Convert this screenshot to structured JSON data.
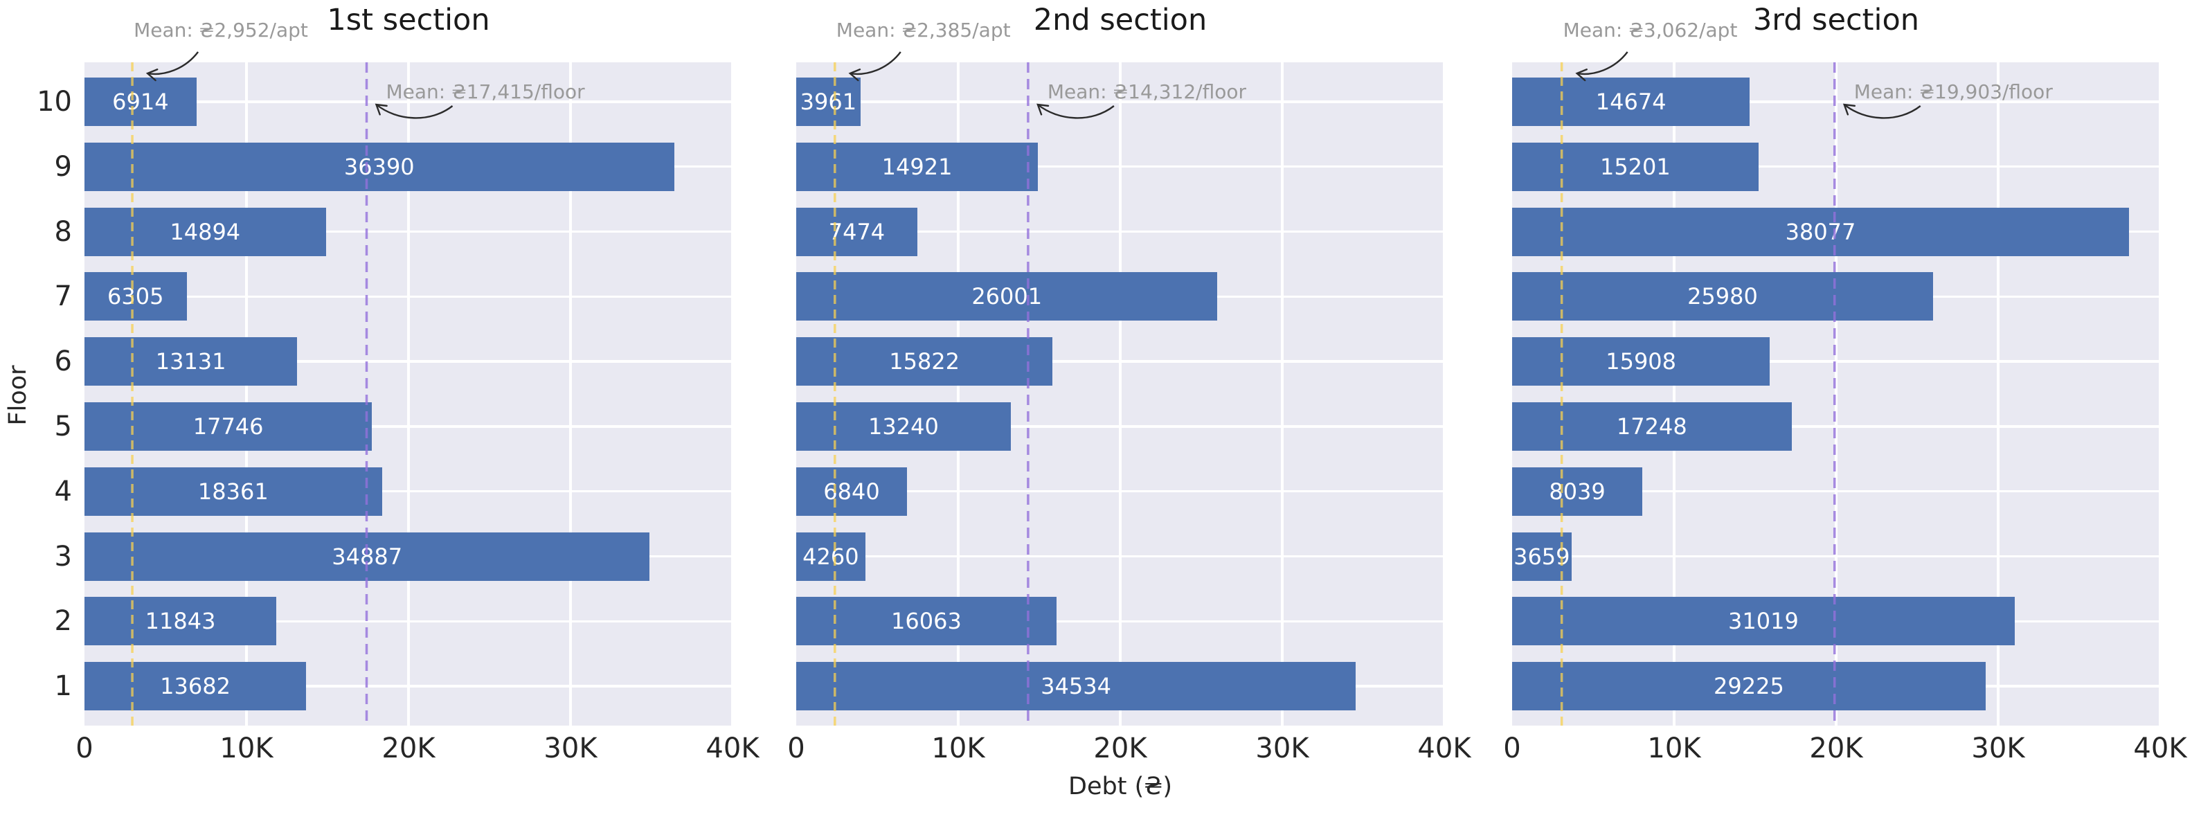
{
  "figure": {
    "xlabel": "Debt (₴)",
    "ylabel": "Floor",
    "x_ticks": [
      {
        "label": "0",
        "value": 0
      },
      {
        "label": "10K",
        "value": 10000
      },
      {
        "label": "20K",
        "value": 20000
      },
      {
        "label": "30K",
        "value": 30000
      },
      {
        "label": "40K",
        "value": 40000
      }
    ],
    "floors": [
      "10",
      "9",
      "8",
      "7",
      "6",
      "5",
      "4",
      "3",
      "2",
      "1"
    ],
    "colors": {
      "bar": "#4C72B0",
      "plot_background": "#E9E9F2",
      "grid": "#FFFFFF",
      "mean_apt_line": "rgba(247,208,80,0.75)",
      "mean_floor_line": "rgba(147,112,219,0.8)",
      "annotation_text": "#999999",
      "tick_text": "#262626",
      "title_text": "#1a1a1a",
      "bar_label_text": "#FFFFFF",
      "arrow": "#2b2b2b"
    }
  },
  "chart_data": [
    {
      "type": "bar",
      "orientation": "horizontal",
      "title": "1st section",
      "xlabel": "Debt (₴)",
      "ylabel": "Floor",
      "xlim": [
        0,
        40000
      ],
      "categories": [
        "10",
        "9",
        "8",
        "7",
        "6",
        "5",
        "4",
        "3",
        "2",
        "1"
      ],
      "values": [
        6914,
        36390,
        14894,
        6305,
        13131,
        17746,
        18361,
        34887,
        11843,
        13682
      ],
      "mean_per_apt": 2952,
      "mean_per_floor": 17415,
      "annotations": {
        "apt": "Mean: ₴2,952/apt",
        "floor": "Mean: ₴17,415/floor"
      }
    },
    {
      "type": "bar",
      "orientation": "horizontal",
      "title": "2nd section",
      "xlabel": "Debt (₴)",
      "ylabel": "Floor",
      "xlim": [
        0,
        40000
      ],
      "categories": [
        "10",
        "9",
        "8",
        "7",
        "6",
        "5",
        "4",
        "3",
        "2",
        "1"
      ],
      "values": [
        3961,
        14921,
        7474,
        26001,
        15822,
        13240,
        6840,
        4260,
        16063,
        34534
      ],
      "mean_per_apt": 2385,
      "mean_per_floor": 14312,
      "annotations": {
        "apt": "Mean: ₴2,385/apt",
        "floor": "Mean: ₴14,312/floor"
      }
    },
    {
      "type": "bar",
      "orientation": "horizontal",
      "title": "3rd section",
      "xlabel": "Debt (₴)",
      "ylabel": "Floor",
      "xlim": [
        0,
        40000
      ],
      "categories": [
        "10",
        "9",
        "8",
        "7",
        "6",
        "5",
        "4",
        "3",
        "2",
        "1"
      ],
      "values": [
        14674,
        15201,
        38077,
        25980,
        15908,
        17248,
        8039,
        3659,
        31019,
        29225
      ],
      "mean_per_apt": 3062,
      "mean_per_floor": 19903,
      "annotations": {
        "apt": "Mean: ₴3,062/apt",
        "floor": "Mean: ₴19,903/floor"
      }
    }
  ]
}
